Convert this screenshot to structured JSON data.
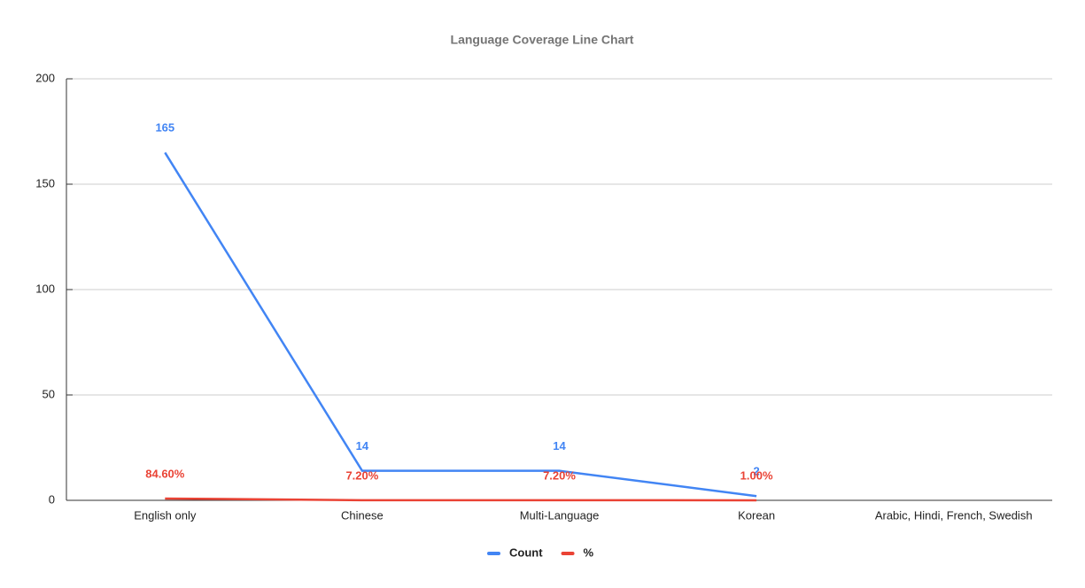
{
  "chart_data": {
    "type": "line",
    "title": "Language Coverage Line Chart",
    "categories": [
      "English only",
      "Chinese",
      "Multi-Language",
      "Korean",
      "Arabic, Hindi, French, Swedish"
    ],
    "series": [
      {
        "name": "Count",
        "color": "#4285f4",
        "values": [
          165,
          14,
          14,
          2,
          null
        ]
      },
      {
        "name": "%",
        "color": "#ea4335",
        "values": [
          0.846,
          0.072,
          0.072,
          0.01,
          null
        ],
        "value_labels": [
          "84.60%",
          "7.20%",
          "7.20%",
          "1.00%",
          null
        ]
      }
    ],
    "ylim": [
      0,
      200
    ],
    "yticks": [
      0,
      50,
      100,
      150,
      200
    ],
    "grid": true,
    "legend": "bottom"
  }
}
